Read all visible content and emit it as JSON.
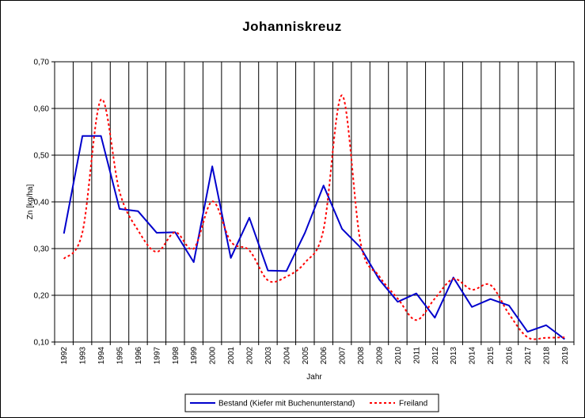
{
  "chart_data": {
    "type": "line",
    "title": "Johanniskreuz",
    "xlabel": "Jahr",
    "ylabel": "Zn [kg/ha]",
    "ylim": [
      0.1,
      0.7
    ],
    "yticks": [
      "0,10",
      "0,20",
      "0,30",
      "0,40",
      "0,50",
      "0,60",
      "0,70"
    ],
    "ytick_values": [
      0.1,
      0.2,
      0.3,
      0.4,
      0.5,
      0.6,
      0.7
    ],
    "grid": true,
    "legend_position": "bottom",
    "x": [
      "1992",
      "1993",
      "1994",
      "1995",
      "1996",
      "1997",
      "1998",
      "1999",
      "2000",
      "2001",
      "2002",
      "2003",
      "2004",
      "2005",
      "2006",
      "2007",
      "2008",
      "2009",
      "2010",
      "2011",
      "2012",
      "2013",
      "2014",
      "2015",
      "2016",
      "2017",
      "2018",
      "2019"
    ],
    "series": [
      {
        "name": "Bestand (Kiefer mit Buchenunterstand)",
        "color": "#0000cc",
        "style": "solid",
        "values": [
          0.332,
          0.541,
          0.541,
          0.385,
          0.38,
          0.334,
          0.335,
          0.271,
          0.476,
          0.28,
          0.366,
          0.253,
          0.252,
          0.334,
          0.435,
          0.342,
          0.302,
          0.234,
          0.186,
          0.204,
          0.152,
          0.238,
          0.175,
          0.192,
          0.178,
          0.122,
          0.136,
          0.106
        ]
      },
      {
        "name": "Freiland",
        "color": "#ff0000",
        "style": "dotted",
        "values": [
          0.278,
          0.335,
          0.619,
          0.422,
          0.339,
          0.293,
          0.335,
          0.3,
          0.401,
          0.315,
          0.296,
          0.232,
          0.24,
          0.27,
          0.341,
          0.628,
          0.312,
          0.241,
          0.193,
          0.147,
          0.193,
          0.235,
          0.212,
          0.222,
          0.16,
          0.11,
          0.109,
          0.11
        ]
      }
    ]
  }
}
